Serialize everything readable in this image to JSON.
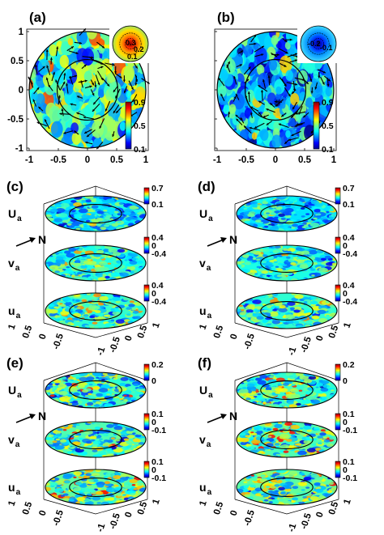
{
  "figure": {
    "panels": [
      {
        "id": "a",
        "label": "(a)"
      },
      {
        "id": "b",
        "label": "(b)"
      },
      {
        "id": "c",
        "label": "(c)"
      },
      {
        "id": "d",
        "label": "(d)"
      },
      {
        "id": "e",
        "label": "(e)"
      },
      {
        "id": "f",
        "label": "(f)"
      }
    ],
    "arrow_label": "N",
    "layer_labels": [
      {
        "main": "U",
        "sub": "a"
      },
      {
        "main": "v",
        "sub": "a"
      },
      {
        "main": "u",
        "sub": "a"
      }
    ]
  },
  "chart_data": [
    {
      "panel": "(a)",
      "type": "heatmap",
      "x_ticks": [
        "-1",
        "-0.5",
        "0",
        "0.5",
        "1"
      ],
      "y_ticks": [
        "1",
        "0.5",
        "0",
        "-0.5",
        "-1"
      ],
      "xlim": [
        -1,
        1
      ],
      "ylim": [
        -1,
        1
      ],
      "colorbar_ticks": [
        "0.9",
        "0.5",
        "0.1"
      ],
      "clim": [
        0.1,
        0.9
      ],
      "inset_contour_labels": [
        "0.3",
        "0.2",
        "0.1"
      ],
      "colormap": "jet"
    },
    {
      "panel": "(b)",
      "type": "heatmap",
      "x_ticks": [
        "-1",
        "-0.5",
        "0",
        "0.5",
        "1"
      ],
      "xlim": [
        -1,
        1
      ],
      "ylim": [
        -1,
        1
      ],
      "colorbar_ticks": [
        "0.9",
        "0.5",
        "0.1"
      ],
      "clim": [
        0.1,
        0.9
      ],
      "inset_contour_labels": [
        "-0.2",
        "-0.1"
      ],
      "colormap": "jet"
    },
    {
      "panel": "(c)",
      "type": "heatmap",
      "layers": [
        "U_a",
        "v_a",
        "u_a"
      ],
      "colorbars": [
        [
          "0.7",
          "0.1"
        ],
        [
          "0.4",
          "0",
          "-0.4"
        ],
        [
          "0.4",
          "0",
          "-0.4"
        ]
      ],
      "x_ticks": [
        "-1",
        "-0.5",
        "0",
        "0.5",
        "1"
      ],
      "y_ticks": [
        "1",
        "0.5",
        "0",
        "-0.5"
      ]
    },
    {
      "panel": "(d)",
      "type": "heatmap",
      "layers": [
        "U_a",
        "v_a",
        "u_a"
      ],
      "colorbars": [
        [
          "0.7",
          "0.1"
        ],
        [
          "0.4",
          "0",
          "-0.4"
        ],
        [
          "0.4",
          "0",
          "-0.4"
        ]
      ],
      "x_ticks": [
        "-1",
        "-0.5",
        "0",
        "0.5",
        "1"
      ],
      "y_ticks": [
        "1",
        "0.5",
        "0",
        "-0.5"
      ]
    },
    {
      "panel": "(e)",
      "type": "heatmap",
      "layers": [
        "U_a",
        "v_a",
        "u_a"
      ],
      "colorbars": [
        [
          "0.2",
          "0"
        ],
        [
          "0.1",
          "0",
          "-0.1"
        ],
        [
          "0.1",
          "0",
          "-0.1"
        ]
      ],
      "x_ticks": [
        "-1",
        "-0.5",
        "0",
        "0.5",
        "1"
      ],
      "y_ticks": [
        "1",
        "0.5",
        "0",
        "-0.5"
      ]
    },
    {
      "panel": "(f)",
      "type": "heatmap",
      "layers": [
        "U_a",
        "v_a",
        "u_a"
      ],
      "colorbars": [
        [
          "0.2",
          "0"
        ],
        [
          "0.1",
          "0",
          "-0.1"
        ],
        [
          "0.1",
          "0",
          "-0.1"
        ]
      ],
      "x_ticks": [
        "-1",
        "-0.5",
        "0",
        "0.5",
        "1"
      ],
      "y_ticks": [
        "1",
        "0.5",
        "0",
        "-0.5"
      ]
    }
  ]
}
